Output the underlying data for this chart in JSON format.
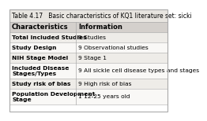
{
  "title": "Table 4.17   Basic characteristics of KQ1 literature set: sicki",
  "headers": [
    "Characteristics",
    "Information"
  ],
  "rows": [
    [
      "Total Included Studies",
      "9 Studies"
    ],
    [
      "Study Design",
      "9 Observational studies"
    ],
    [
      "NIH Stage Model",
      "9 Stage 1"
    ],
    [
      "Included Disease\nStages/Types",
      "9 All sickle cell disease types and stages"
    ],
    [
      "Study risk of bias",
      "9 High risk of bias"
    ],
    [
      "Population Development\nStage",
      "1 12-25 years old"
    ]
  ],
  "col_split": 0.42,
  "header_bg": "#d4d0cc",
  "row_bg_even": "#eeece8",
  "row_bg_odd": "#f9f8f6",
  "border_color": "#aaaaaa",
  "text_color": "#000000",
  "title_fontsize": 5.5,
  "header_fontsize": 6.0,
  "cell_fontsize": 5.4,
  "fig_bg": "#ffffff",
  "title_bg": "#e8e5e0"
}
